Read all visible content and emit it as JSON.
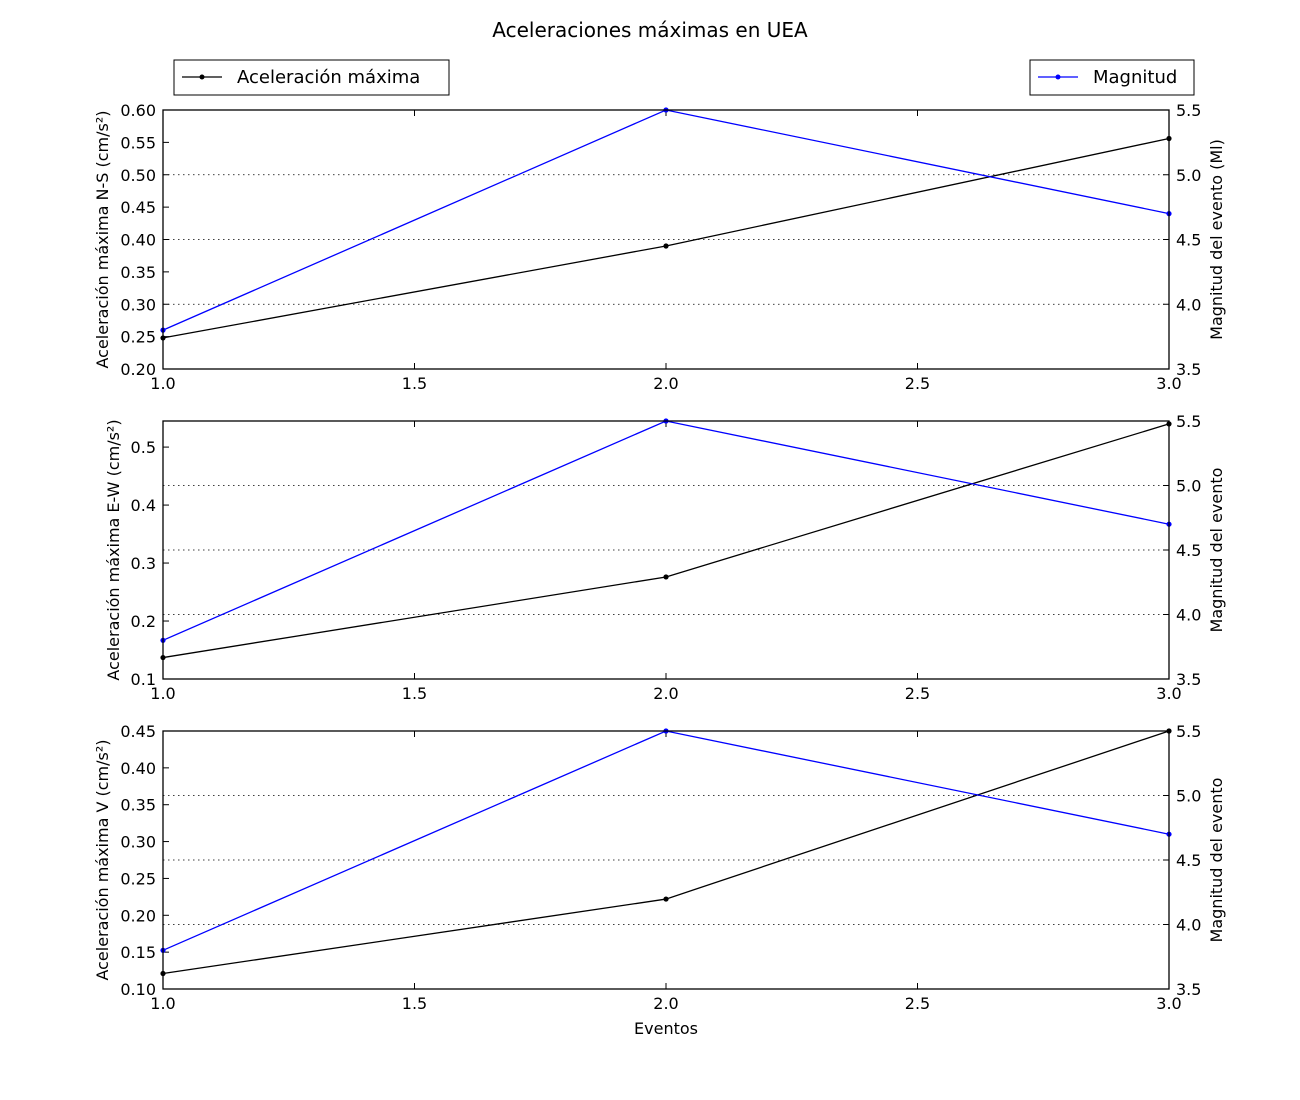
{
  "figure": {
    "title": "Aceleraciones máximas en UEA",
    "legend_left": "Aceleración máxima",
    "legend_right": "Magnitud",
    "xlabel": "Eventos"
  },
  "colors": {
    "aceleracion": "#000000",
    "magnitud": "#0000ff",
    "grid": "#000000"
  },
  "chart_data": [
    {
      "type": "line",
      "x": [
        1.0,
        2.0,
        3.0
      ],
      "xlim": [
        1.0,
        3.0
      ],
      "xticks": [
        "1.0",
        "1.5",
        "2.0",
        "2.5",
        "3.0"
      ],
      "ylabel": "Aceleración máxima N-S (cm/s²)",
      "ylim": [
        0.2,
        0.6
      ],
      "yticks": [
        "0.20",
        "0.25",
        "0.30",
        "0.35",
        "0.40",
        "0.45",
        "0.50",
        "0.55",
        "0.60"
      ],
      "y2label": "Magnitud del evento (Ml)",
      "y2lim": [
        3.5,
        5.5
      ],
      "y2ticks": [
        "3.5",
        "4.0",
        "4.5",
        "5.0",
        "5.5"
      ],
      "grid": "dotted horizontal at right-axis ticks",
      "series": [
        {
          "name": "Aceleración máxima",
          "axis": "left",
          "values": [
            0.248,
            0.39,
            0.556
          ]
        },
        {
          "name": "Magnitud",
          "axis": "right",
          "values": [
            3.8,
            5.5,
            4.7
          ]
        }
      ]
    },
    {
      "type": "line",
      "x": [
        1.0,
        2.0,
        3.0
      ],
      "xlim": [
        1.0,
        3.0
      ],
      "xticks": [
        "1.0",
        "1.5",
        "2.0",
        "2.5",
        "3.0"
      ],
      "ylabel": "Aceleración máxima E-W (cm/s²)",
      "ylim": [
        0.1,
        0.545
      ],
      "yticks": [
        "0.1",
        "0.2",
        "0.3",
        "0.4",
        "0.5"
      ],
      "y2label": "Magnitud del evento",
      "y2lim": [
        3.5,
        5.5
      ],
      "y2ticks": [
        "3.5",
        "4.0",
        "4.5",
        "5.0",
        "5.5"
      ],
      "grid": "dotted horizontal at right-axis ticks",
      "series": [
        {
          "name": "Aceleración máxima",
          "axis": "left",
          "values": [
            0.137,
            0.276,
            0.54
          ]
        },
        {
          "name": "Magnitud",
          "axis": "right",
          "values": [
            3.8,
            5.5,
            4.7
          ]
        }
      ]
    },
    {
      "type": "line",
      "x": [
        1.0,
        2.0,
        3.0
      ],
      "xlim": [
        1.0,
        3.0
      ],
      "xticks": [
        "1.0",
        "1.5",
        "2.0",
        "2.5",
        "3.0"
      ],
      "ylabel": "Aceleración máxima V (cm/s²)",
      "ylim": [
        0.1,
        0.45
      ],
      "yticks": [
        "0.10",
        "0.15",
        "0.20",
        "0.25",
        "0.30",
        "0.35",
        "0.40",
        "0.45"
      ],
      "y2label": "Magnitud del evento",
      "y2lim": [
        3.5,
        5.5
      ],
      "y2ticks": [
        "3.5",
        "4.0",
        "4.5",
        "5.0",
        "5.5"
      ],
      "grid": "dotted horizontal at right-axis ticks",
      "series": [
        {
          "name": "Aceleración máxima",
          "axis": "left",
          "values": [
            0.121,
            0.222,
            0.45
          ]
        },
        {
          "name": "Magnitud",
          "axis": "right",
          "values": [
            3.8,
            5.5,
            4.7
          ]
        }
      ]
    }
  ]
}
